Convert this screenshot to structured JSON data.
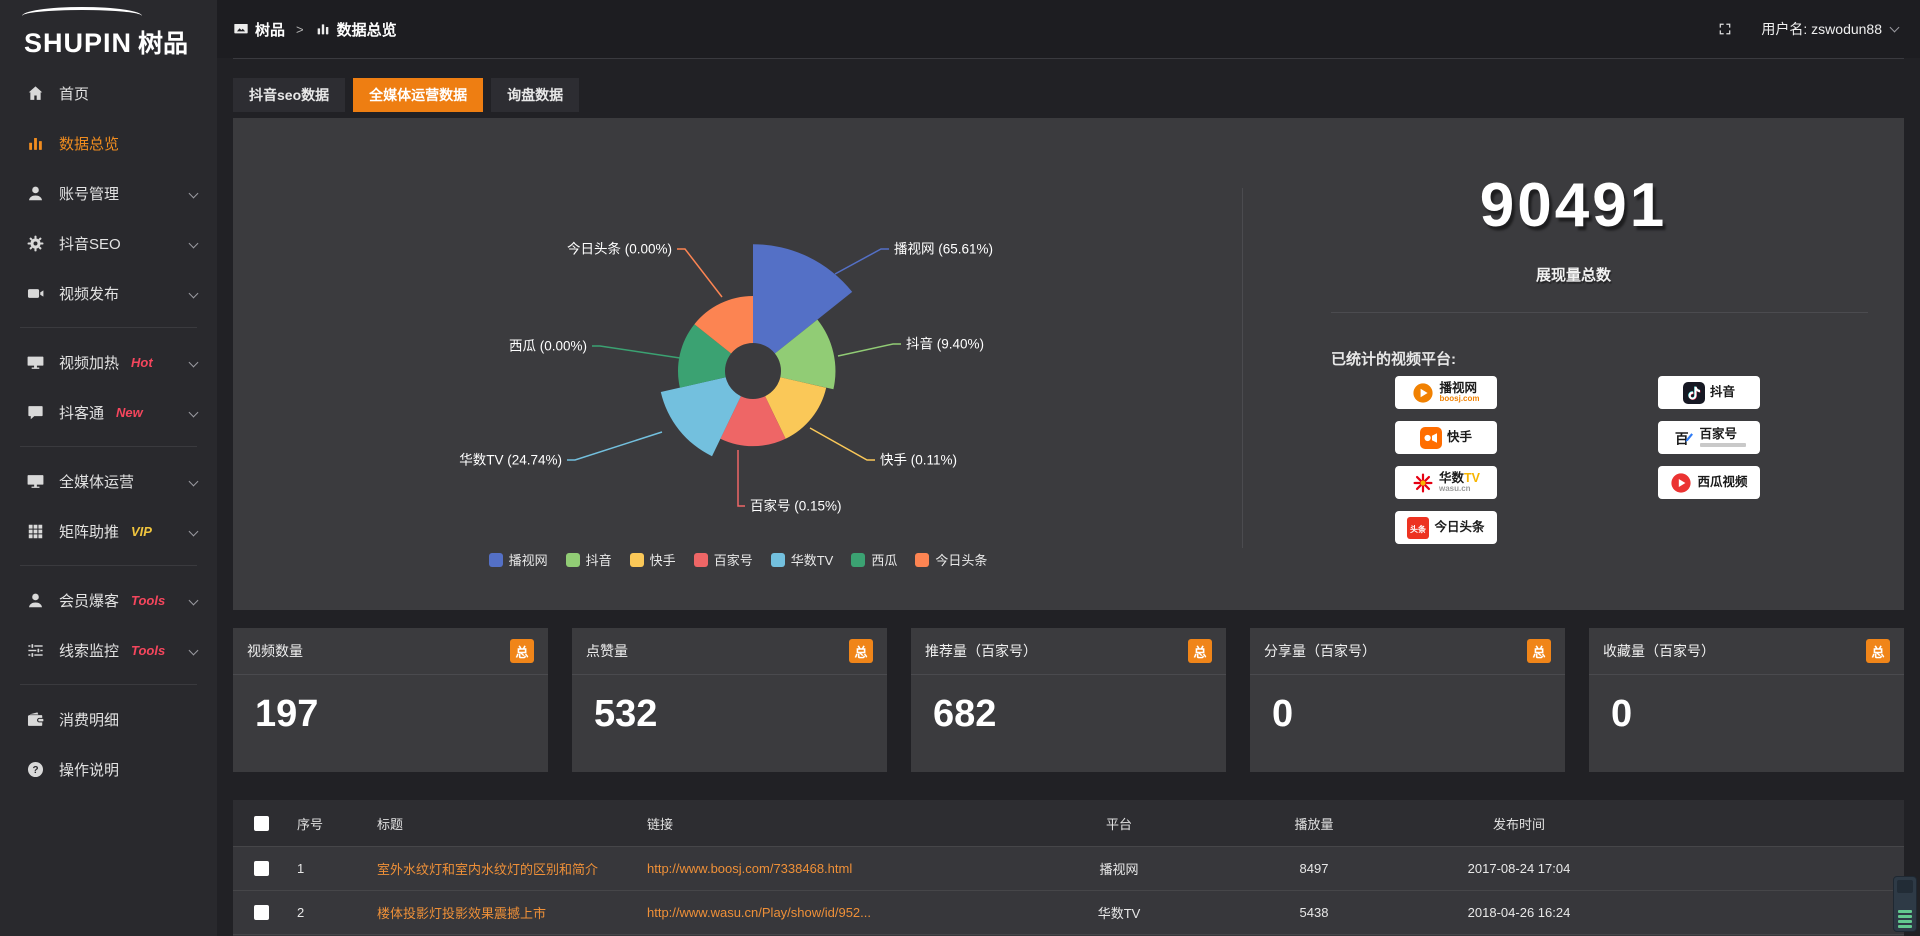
{
  "topbar": {
    "logo_primary": "SHUPIN",
    "logo_secondary": "树品",
    "breadcrumb": [
      {
        "key": "shupin",
        "label": "树品"
      },
      {
        "key": "data-overview",
        "label": "数据总览"
      }
    ],
    "breadcrumb_separator": ">",
    "username": "用户名: zswodun88"
  },
  "sidebar": {
    "items": [
      {
        "key": "home",
        "label": "首页",
        "icon": "home"
      },
      {
        "key": "data-overview",
        "label": "数据总览",
        "icon": "chart",
        "active": true
      },
      {
        "key": "account-management",
        "label": "账号管理",
        "icon": "user",
        "chevron": true
      },
      {
        "key": "douyin-seo",
        "label": "抖音SEO",
        "icon": "gear",
        "chevron": true
      },
      {
        "key": "video-publish",
        "label": "视频发布",
        "icon": "video",
        "chevron": true
      },
      {
        "divider": true
      },
      {
        "key": "video-heat",
        "label": "视频加热",
        "icon": "tv",
        "chevron": true,
        "badge": "Hot",
        "badge_color": "#f5465d"
      },
      {
        "key": "douketong",
        "label": "抖客通",
        "icon": "chat",
        "chevron": true,
        "badge": "New",
        "badge_color": "#f5465d"
      },
      {
        "divider": true
      },
      {
        "key": "omni-media-operation",
        "label": "全媒体运营",
        "icon": "monitor",
        "chevron": true
      },
      {
        "key": "matrix-boost",
        "label": "矩阵助推",
        "icon": "grid",
        "chevron": true,
        "badge": "VIP",
        "badge_color": "#f0c53e"
      },
      {
        "divider": true
      },
      {
        "key": "member-baoke",
        "label": "会员爆客",
        "icon": "person",
        "chevron": true,
        "badge": "Tools",
        "badge_color": "#f5465d"
      },
      {
        "key": "lead-monitor",
        "label": "线索监控",
        "icon": "sliders",
        "chevron": true,
        "badge": "Tools",
        "badge_color": "#f5465d"
      },
      {
        "divider": true
      },
      {
        "key": "consumption-detail",
        "label": "消费明细",
        "icon": "wallet"
      },
      {
        "key": "operation-guide",
        "label": "操作说明",
        "icon": "question"
      }
    ]
  },
  "tabs": [
    {
      "key": "douyin-seo-data",
      "label": "抖音seo数据"
    },
    {
      "key": "omni-media-data",
      "label": "全媒体运营数据",
      "active": true
    },
    {
      "key": "inquiry-data",
      "label": "询盘数据"
    }
  ],
  "chart_data": {
    "type": "pie",
    "variant": "nightingale-rose-donut",
    "categories": [
      "播视网",
      "抖音",
      "快手",
      "百家号",
      "华数TV",
      "西瓜",
      "今日头条"
    ],
    "category_keys": [
      "boosj",
      "douyin",
      "kuaishou",
      "baijiahao",
      "wasu",
      "xigua",
      "toutiao"
    ],
    "values": [
      65.61,
      9.4,
      0.11,
      0.15,
      24.74,
      0.0,
      0.0
    ],
    "unit": "percent",
    "labels": [
      "播视网 (65.61%)",
      "抖音 (9.40%)",
      "快手 (0.11%)",
      "百家号 (0.15%)",
      "华数TV (24.74%)",
      "西瓜 (0.00%)",
      "今日头条 (0.00%)"
    ],
    "colors": [
      "#5470c6",
      "#91cc75",
      "#fac858",
      "#ee6666",
      "#73c0de",
      "#3ba272",
      "#fc8452"
    ],
    "legend_position": "bottom",
    "start_angle_deg": 90,
    "clockwise": true
  },
  "overview": {
    "total_value": "90491",
    "total_label": "展现量总数",
    "platforms_title": "已统计的视频平台:",
    "platform_columns": [
      [
        {
          "key": "boosj",
          "name": "播视网",
          "sub": "boosj.com",
          "sub_color": "#f18101"
        },
        {
          "key": "kuaishou",
          "name": "快手"
        },
        {
          "key": "wasu",
          "name": "华数TV",
          "sub": "wasu.cn",
          "sub_color": "#9a9a9a"
        },
        {
          "key": "toutiao",
          "name": "今日头条"
        }
      ],
      [
        {
          "key": "douyin",
          "name": "抖音"
        },
        {
          "key": "baijiahao",
          "name": "百家号"
        },
        {
          "key": "xigua",
          "name": "西瓜视频"
        }
      ]
    ]
  },
  "stat_cards": [
    {
      "key": "video-count",
      "title": "视频数量",
      "value": "197",
      "badge": "总"
    },
    {
      "key": "like-count",
      "title": "点赞量",
      "value": "532",
      "badge": "总"
    },
    {
      "key": "recommend-count",
      "title": "推荐量（百家号）",
      "value": "682",
      "badge": "总"
    },
    {
      "key": "share-count",
      "title": "分享量（百家号）",
      "value": "0",
      "badge": "总"
    },
    {
      "key": "favorite-count",
      "title": "收藏量（百家号）",
      "value": "0",
      "badge": "总"
    }
  ],
  "table": {
    "columns": [
      "序号",
      "标题",
      "链接",
      "平台",
      "播放量",
      "发布时间"
    ],
    "rows": [
      {
        "index": "1",
        "title": "室外水纹灯和室内水纹灯的区别和简介",
        "link": "http://www.boosj.com/7338468.html",
        "platform": "播视网",
        "plays": "8497",
        "time": "2017-08-24 17:04"
      },
      {
        "index": "2",
        "title": "楼体投影灯投影效果震撼上市",
        "link": "http://www.wasu.cn/Play/show/id/952...",
        "platform": "华数TV",
        "plays": "5438",
        "time": "2018-04-26 16:24"
      }
    ]
  },
  "colors": {
    "accent_orange": "#ee7e12",
    "badge_orange": "#f08519",
    "link_orange": "#ef9038",
    "hot_red": "#f5465d",
    "vip_gold": "#f0c53e"
  }
}
